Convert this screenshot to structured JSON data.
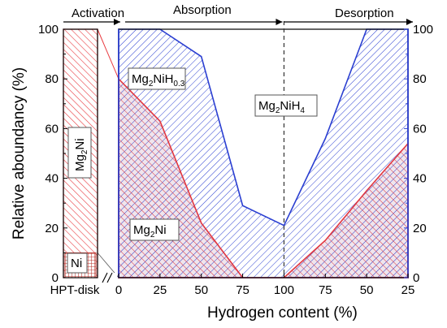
{
  "chart_data": {
    "type": "area",
    "ylabel": "Relative aboundancy (%)",
    "xlabel": "Hydrogen content (%)",
    "ylim": [
      0,
      100
    ],
    "yticks": [
      0,
      20,
      40,
      60,
      80,
      100
    ],
    "stages": [
      {
        "label": "Activation"
      },
      {
        "label": "Absorption"
      },
      {
        "label": "Desorption"
      }
    ],
    "hpt_disk": {
      "x_label": "HPT-disk",
      "phases": [
        {
          "name": "Mg2Ni",
          "base": "Mg",
          "sub": "2",
          "tail": "Ni",
          "from": 0,
          "to": 100
        },
        {
          "name": "Ni",
          "base": "Ni",
          "sub": "",
          "tail": "",
          "from": 0,
          "to": 10
        }
      ]
    },
    "x_tick_labels": [
      "0",
      "25",
      "50",
      "75",
      "100",
      "75",
      "50",
      "25"
    ],
    "series": [
      {
        "name": "Mg2Ni",
        "label": {
          "base": "Mg",
          "sub": "2",
          "tail": "Ni"
        },
        "color": "#e8393f",
        "values": [
          80,
          63,
          22,
          0,
          0,
          15,
          35,
          54
        ]
      },
      {
        "name": "Mg2NiH0.3",
        "label": {
          "base": "Mg",
          "sub": "2",
          "tail": "NiH",
          "sub2": "0.3"
        },
        "color": "#2b3fd1",
        "values": [
          100,
          100,
          89,
          29,
          21,
          56,
          100,
          100
        ]
      },
      {
        "name": "Mg2NiH4",
        "label": {
          "base": "Mg",
          "sub": "2",
          "tail": "NiH",
          "sub2": "4"
        }
      }
    ],
    "colors": {
      "red": "#e8393f",
      "blue": "#2b3fd1",
      "ni": "#b8342e"
    },
    "grid": false
  }
}
